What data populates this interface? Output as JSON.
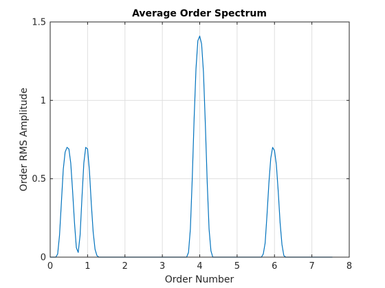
{
  "chart_data": {
    "type": "line",
    "title": "Average Order Spectrum",
    "xlabel": "Order Number",
    "ylabel": "Order RMS Amplitude",
    "xlim": [
      0,
      8
    ],
    "ylim": [
      0,
      1.5
    ],
    "xticks": [
      0,
      1,
      2,
      3,
      4,
      5,
      6,
      7,
      8
    ],
    "xtick_labels": [
      "0",
      "1",
      "2",
      "3",
      "4",
      "5",
      "6",
      "7",
      "8"
    ],
    "yticks": [
      0,
      0.5,
      1,
      1.5
    ],
    "ytick_labels": [
      "0",
      "0.5",
      "1",
      "1.5"
    ],
    "grid": true,
    "series": [
      {
        "color": "#0072bd",
        "x": [
          0.0,
          0.05,
          0.1,
          0.15,
          0.2,
          0.25,
          0.3,
          0.35,
          0.4,
          0.45,
          0.5,
          0.55,
          0.6,
          0.65,
          0.7,
          0.75,
          0.8,
          0.85,
          0.9,
          0.95,
          1.0,
          1.05,
          1.1,
          1.15,
          1.2,
          1.25,
          1.3,
          1.35,
          1.4,
          1.5,
          2.0,
          2.5,
          3.0,
          3.5,
          3.65,
          3.7,
          3.75,
          3.8,
          3.85,
          3.9,
          3.95,
          4.0,
          4.05,
          4.1,
          4.15,
          4.2,
          4.25,
          4.3,
          4.35,
          4.5,
          5.0,
          5.5,
          5.65,
          5.7,
          5.75,
          5.8,
          5.85,
          5.9,
          5.95,
          6.0,
          6.05,
          6.1,
          6.15,
          6.2,
          6.25,
          6.3,
          6.35,
          6.5,
          7.0,
          7.5,
          7.55
        ],
        "y": [
          0.0,
          0.0,
          0.0,
          0.0,
          0.02,
          0.14,
          0.35,
          0.56,
          0.67,
          0.7,
          0.69,
          0.6,
          0.42,
          0.22,
          0.06,
          0.03,
          0.14,
          0.38,
          0.6,
          0.7,
          0.69,
          0.55,
          0.34,
          0.16,
          0.05,
          0.01,
          0.0,
          0.0,
          0.0,
          0.0,
          0.0,
          0.0,
          0.0,
          0.0,
          0.0,
          0.03,
          0.18,
          0.5,
          0.88,
          1.2,
          1.38,
          1.41,
          1.36,
          1.18,
          0.85,
          0.48,
          0.18,
          0.04,
          0.0,
          0.0,
          0.0,
          0.0,
          0.0,
          0.02,
          0.09,
          0.27,
          0.47,
          0.63,
          0.7,
          0.68,
          0.59,
          0.42,
          0.22,
          0.08,
          0.01,
          0.0,
          0.0,
          0.0,
          0.0,
          0.0,
          0.0
        ]
      }
    ]
  }
}
